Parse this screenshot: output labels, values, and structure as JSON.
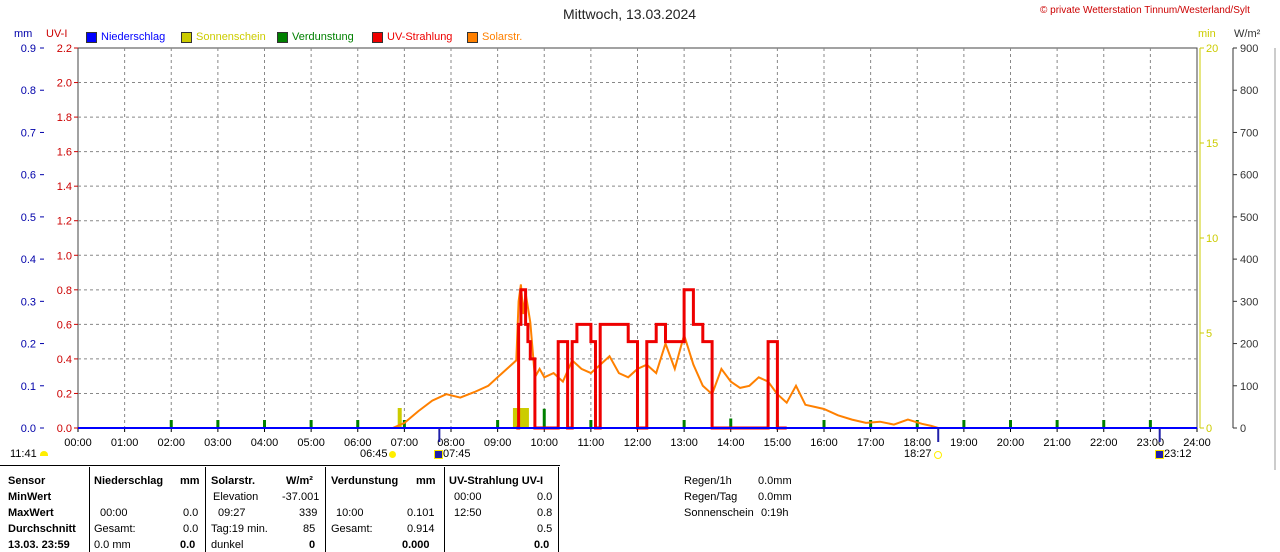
{
  "title": "Mittwoch, 13.03.2024",
  "copyright": "© private Wetterstation Tinnum/Westerland/Sylt",
  "units": {
    "mm": "mm",
    "uvi": "UV-I",
    "min": "min",
    "wm2": "W/m²"
  },
  "legend": [
    {
      "label": "Niederschlag",
      "color": "#0000ff"
    },
    {
      "label": "Sonnenschein",
      "color": "#cccc00"
    },
    {
      "label": "Verdunstung",
      "color": "#008000"
    },
    {
      "label": "UV-Strahlung",
      "color": "#ee0000"
    },
    {
      "label": "Solarstr.",
      "color": "#ff8000"
    }
  ],
  "colors": {
    "mm": "#0000aa",
    "uvi": "#cc0000",
    "min": "#cccc00",
    "wm2": "#333333",
    "grid": "#888888"
  },
  "axes": {
    "mm_ticks": [
      "0.0",
      "0.1",
      "0.2",
      "0.3",
      "0.4",
      "0.5",
      "0.6",
      "0.7",
      "0.8",
      "0.9"
    ],
    "uvi_ticks": [
      "0.0",
      "0.2",
      "0.4",
      "0.6",
      "0.8",
      "1.0",
      "1.2",
      "1.4",
      "1.6",
      "1.8",
      "2.0",
      "2.2"
    ],
    "min_ticks": [
      "0",
      "5",
      "10",
      "15",
      "20"
    ],
    "wm2_ticks": [
      "0",
      "100",
      "200",
      "300",
      "400",
      "500",
      "600",
      "700",
      "800",
      "900"
    ],
    "x_ticks": [
      "00:00",
      "01:00",
      "02:00",
      "03:00",
      "04:00",
      "05:00",
      "06:00",
      "07:00",
      "08:00",
      "09:00",
      "10:00",
      "11:00",
      "12:00",
      "13:00",
      "14:00",
      "15:00",
      "16:00",
      "17:00",
      "18:00",
      "19:00",
      "20:00",
      "21:00",
      "22:00",
      "23:00",
      "24:00"
    ]
  },
  "chart_data": {
    "type": "line",
    "title": "Mittwoch, 13.03.2024",
    "x_range": [
      "00:00",
      "24:00"
    ],
    "ylim_mm": [
      0,
      0.9
    ],
    "ylim_uvi": [
      0,
      2.2
    ],
    "ylim_min": [
      0,
      20
    ],
    "ylim_wm2": [
      0,
      900
    ],
    "grid": true,
    "series": [
      {
        "name": "Solarstr.",
        "unit": "W/m²",
        "x": [
          6.75,
          7.0,
          7.3,
          7.6,
          7.9,
          8.2,
          8.5,
          8.8,
          9.0,
          9.2,
          9.4,
          9.45,
          9.5,
          9.55,
          9.6,
          9.7,
          9.8,
          9.9,
          10.0,
          10.2,
          10.4,
          10.6,
          10.8,
          11.0,
          11.2,
          11.4,
          11.6,
          11.8,
          12.0,
          12.2,
          12.4,
          12.6,
          12.8,
          13.0,
          13.2,
          13.4,
          13.6,
          13.8,
          14.0,
          14.2,
          14.4,
          14.6,
          14.8,
          15.0,
          15.2,
          15.4,
          15.6,
          15.8,
          16.0,
          16.3,
          16.6,
          16.9,
          17.2,
          17.5,
          17.8,
          18.1,
          18.3,
          18.45
        ],
        "values": [
          0,
          12,
          40,
          65,
          80,
          72,
          85,
          100,
          120,
          140,
          160,
          300,
          340,
          270,
          320,
          250,
          120,
          140,
          120,
          130,
          110,
          160,
          140,
          130,
          150,
          170,
          130,
          120,
          140,
          150,
          130,
          200,
          140,
          220,
          150,
          100,
          80,
          140,
          110,
          95,
          100,
          120,
          110,
          80,
          60,
          100,
          55,
          50,
          45,
          30,
          20,
          12,
          15,
          8,
          20,
          10,
          5,
          0
        ]
      },
      {
        "name": "UV-Strahlung",
        "unit": "UV-I",
        "x": [
          9.4,
          9.45,
          9.5,
          9.6,
          9.65,
          9.7,
          9.8,
          10.0,
          10.2,
          10.3,
          10.4,
          10.5,
          10.6,
          10.7,
          10.9,
          11.0,
          11.1,
          11.2,
          11.4,
          11.6,
          11.8,
          12.0,
          12.2,
          12.4,
          12.6,
          12.8,
          13.0,
          13.2,
          13.4,
          13.6,
          13.8,
          14.0,
          14.2,
          14.4,
          14.6,
          14.8,
          15.0,
          15.2
        ],
        "values": [
          0,
          0.6,
          0.8,
          0.6,
          0.5,
          0.4,
          0.0,
          0.0,
          0.0,
          0.5,
          0.5,
          0.0,
          0.5,
          0.6,
          0.6,
          0.5,
          0.0,
          0.6,
          0.6,
          0.6,
          0.5,
          0.0,
          0.5,
          0.6,
          0.5,
          0.5,
          0.8,
          0.6,
          0.5,
          0.0,
          0.0,
          0.0,
          0.0,
          0.0,
          0.0,
          0.5,
          0.0,
          0.0
        ]
      },
      {
        "name": "Verdunstung",
        "unit": "mm",
        "x": [
          2.0,
          3.0,
          4.0,
          5.0,
          6.0,
          7.0,
          9.0,
          10.0,
          11.0,
          12.0,
          13.0,
          14.0,
          15.0,
          16.0,
          17.0,
          18.0,
          19.0,
          20.0,
          21.0,
          22.0,
          23.0
        ],
        "values": [
          0.005,
          0.005,
          0.005,
          0.005,
          0.005,
          0.005,
          0.005,
          0.101,
          0.005,
          0.005,
          0.005,
          0.05,
          0.005,
          0.005,
          0.005,
          0.005,
          0.005,
          0.005,
          0.005,
          0.005,
          0.005
        ]
      },
      {
        "name": "Sonnenschein",
        "unit": "min",
        "x": [
          6.9,
          9.5
        ],
        "values": [
          1,
          1
        ]
      },
      {
        "name": "Niederschlag",
        "unit": "mm",
        "x": [],
        "values": []
      }
    ]
  },
  "markers": {
    "moonrise": "11:41",
    "sunrise": "06:45",
    "dawn": "07:45",
    "sunset": "18:27",
    "moonset": "23:12"
  },
  "table": {
    "col1": [
      "Sensor",
      "MinWert",
      "MaxWert",
      "Durchschnitt",
      "13.03. 23:59"
    ],
    "niederschlag": {
      "header": "Niederschlag",
      "unit": "mm",
      "r1a": "",
      "r1b": "",
      "r2a": "00:00",
      "r2b": "0.0",
      "r3a": "Gesamt:",
      "r3b": "0.0",
      "r4a": "0.0 mm",
      "r4b": "0.0"
    },
    "solar": {
      "header": "Solarstr.",
      "unit": "W/m²",
      "r1a": "Elevation",
      "r1b": "-37.001",
      "r2a": "09:27",
      "r2b": "339",
      "r3a": "Tag:19 min.",
      "r3b": "85",
      "r4a": "dunkel",
      "r4b": "0"
    },
    "verdunstung": {
      "header": "Verdunstung",
      "unit": "mm",
      "r2a": "10:00",
      "r2b": "0.101",
      "r3a": "Gesamt:",
      "r3b": "0.914",
      "r4b": "0.000"
    },
    "uv": {
      "header": "UV-Strahlung UV-I",
      "r1a": "00:00",
      "r1b": "0.0",
      "r2a": "12:50",
      "r2b": "0.8",
      "r3b": "0.5",
      "r4b": "0.0"
    },
    "summary": [
      {
        "label": "Regen/1h",
        "value": "0.0mm"
      },
      {
        "label": "Regen/Tag",
        "value": "0.0mm"
      },
      {
        "label": "Sonnenschein",
        "value": "0:19h"
      }
    ]
  }
}
